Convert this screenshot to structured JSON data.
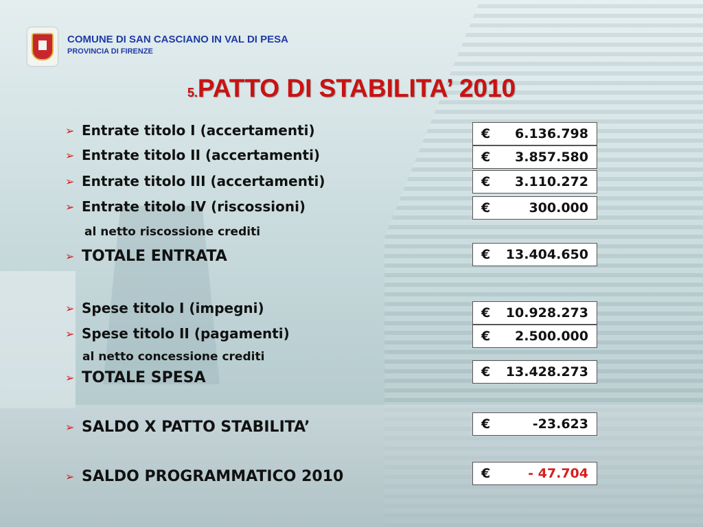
{
  "header": {
    "org_name": "COMUNE DI SAN CASCIANO IN VAL DI PESA",
    "org_sub": "PROVINCIA DI FIRENZE",
    "logo_icon": "coat-of-arms-icon"
  },
  "title": {
    "number": "5.",
    "text": "PATTO DI STABILITA’ 2010"
  },
  "colors": {
    "accent_red": "#cc1111",
    "header_blue": "#1f3aa8"
  },
  "items": {
    "entrate1": {
      "label": "Entrate titolo I (accertamenti)",
      "currency": "€",
      "value": "6.136.798"
    },
    "entrate2": {
      "label": "Entrate titolo II (accertamenti)",
      "currency": "€",
      "value": "3.857.580"
    },
    "entrate3": {
      "label": "Entrate titolo III (accertamenti)",
      "currency": "€",
      "value": "3.110.272"
    },
    "entrate4": {
      "label": "Entrate titolo  IV (riscossioni)",
      "sub": "al netto riscossione crediti",
      "currency": "€",
      "value": "300.000"
    },
    "totale_entrata": {
      "label": "TOTALE ENTRATA",
      "currency": "€",
      "value": "13.404.650"
    },
    "spese1": {
      "label": "Spese titolo I (impegni)",
      "currency": "€",
      "value": "10.928.273"
    },
    "spese2": {
      "label": "Spese titolo II (pagamenti)",
      "sub": "al netto concessione crediti",
      "currency": "€",
      "value": "2.500.000"
    },
    "totale_spesa": {
      "label": "TOTALE SPESA",
      "currency": "€",
      "value": "13.428.273"
    },
    "saldo_patto": {
      "label": "SALDO X PATTO STABILITA’",
      "currency": "€",
      "value": "-23.623"
    },
    "saldo_prog": {
      "label": "SALDO PROGRAMMATICO 2010",
      "currency": "€",
      "value": "- 47.704"
    }
  }
}
